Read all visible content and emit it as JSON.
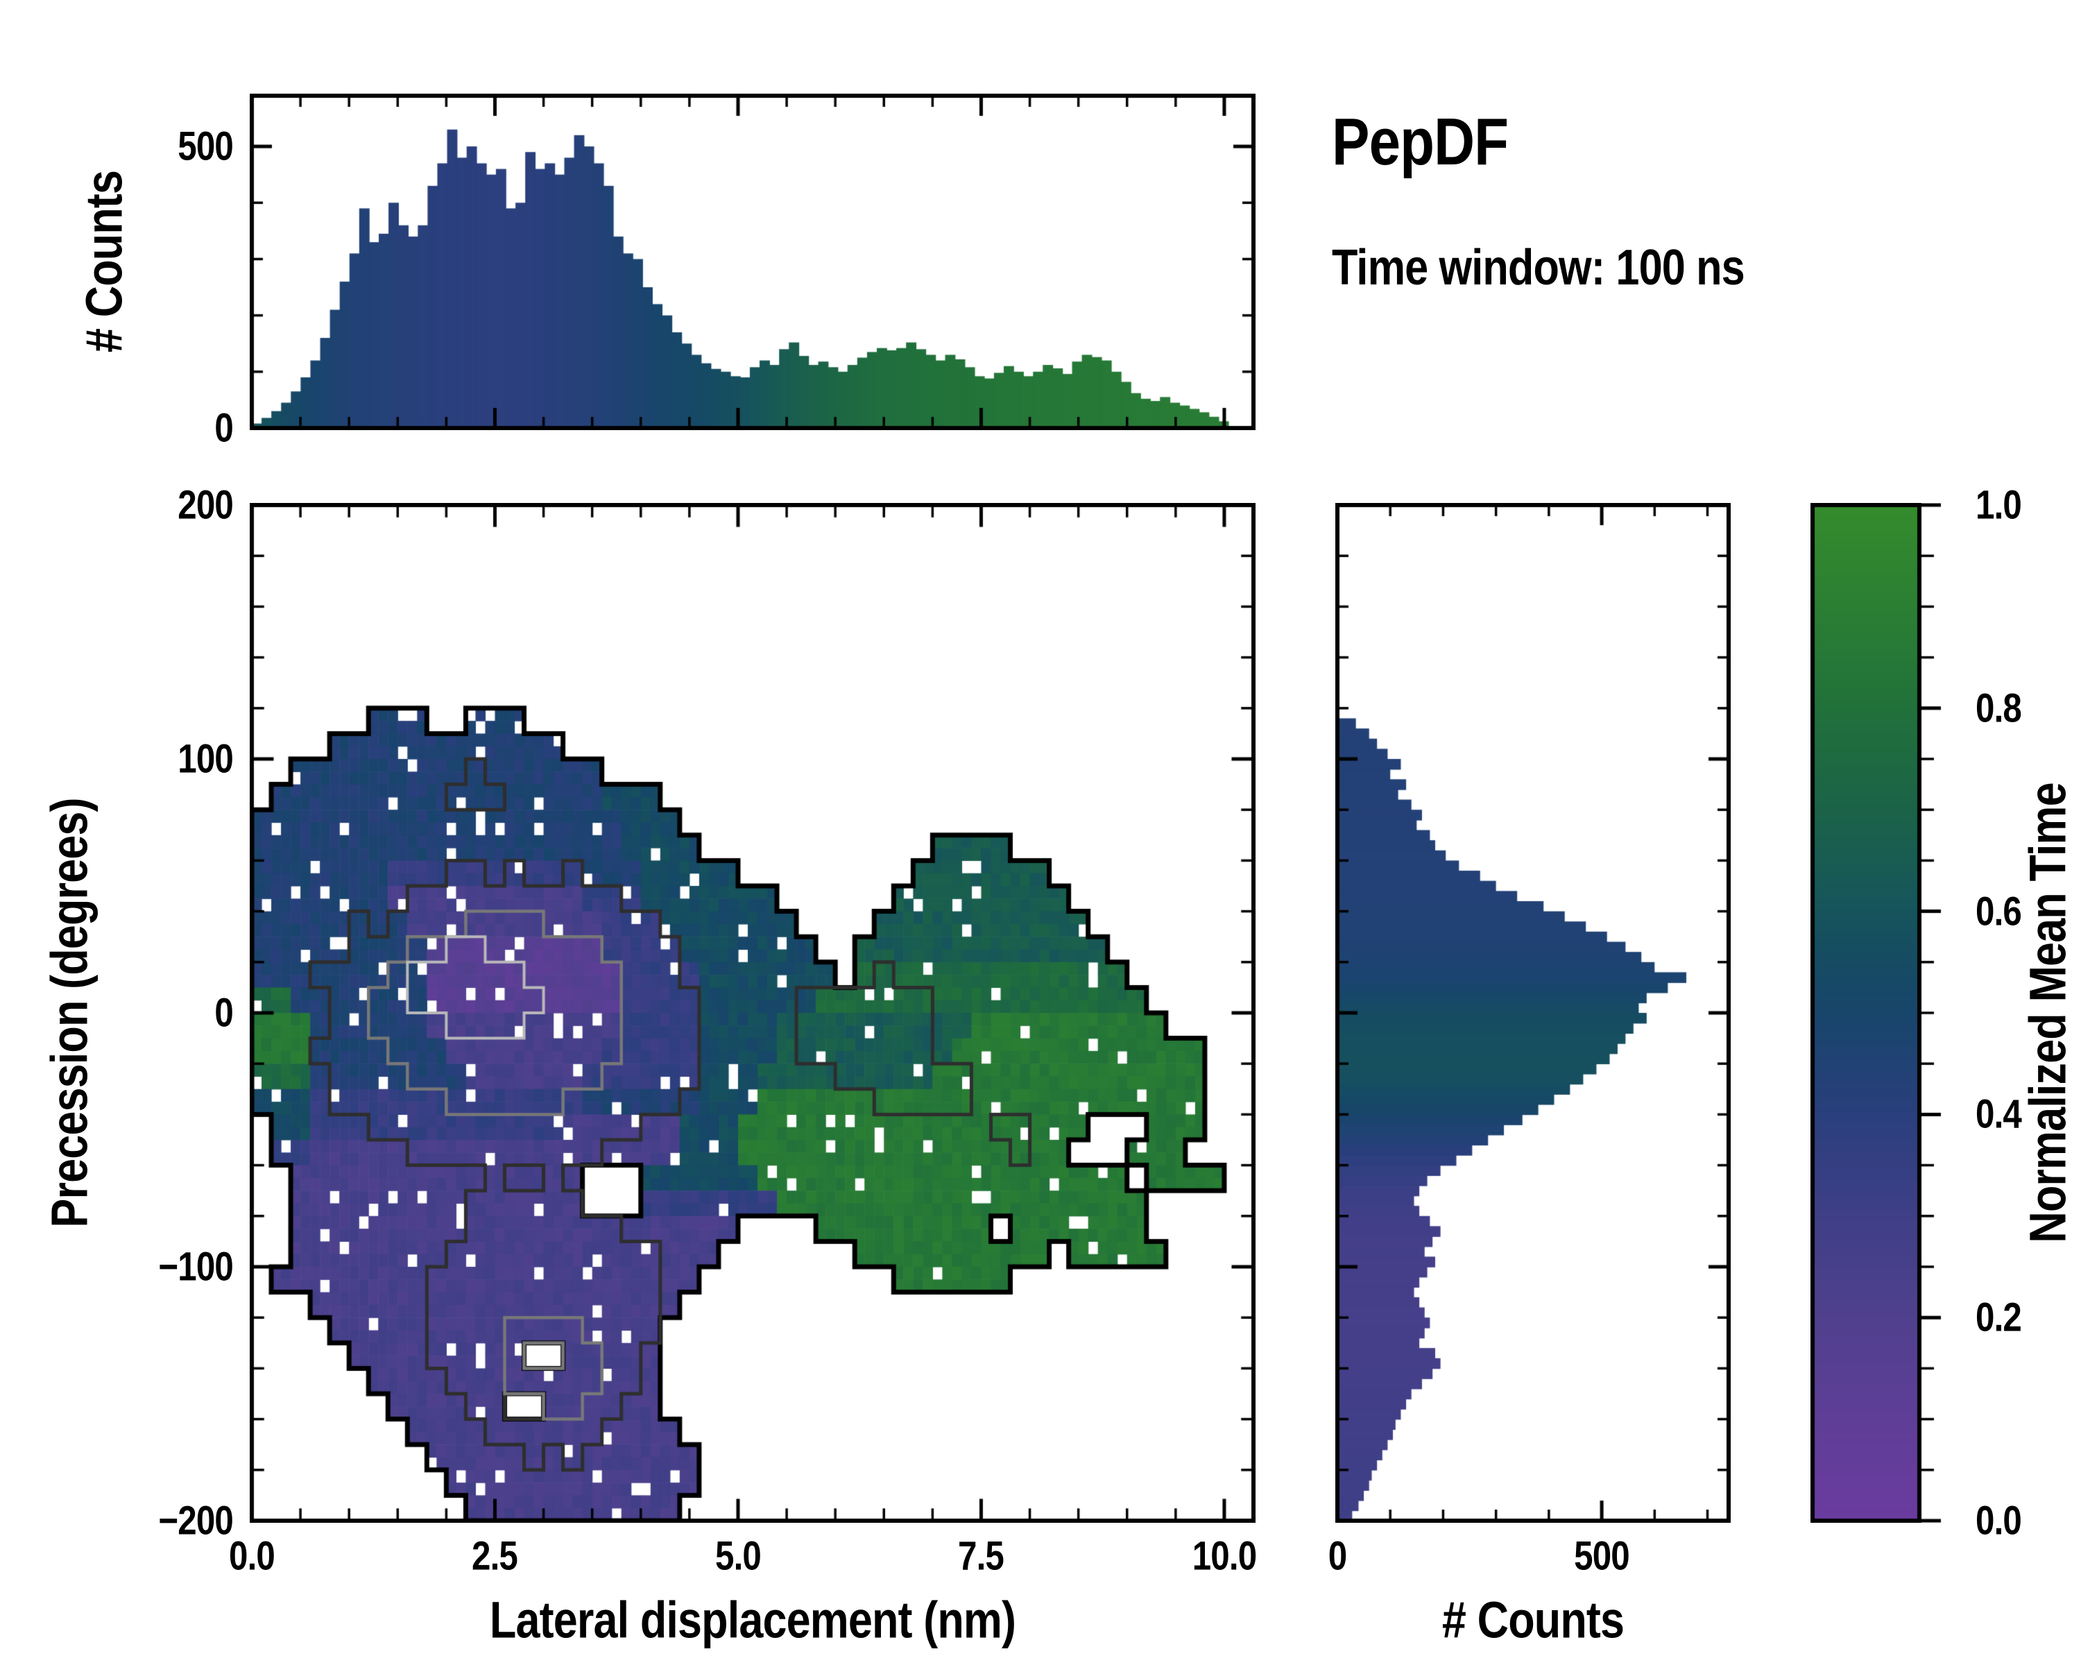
{
  "header": {
    "title": "PepDF",
    "subtitle": "Time window: 100 ns"
  },
  "colors": {
    "background": "#ffffff",
    "axis": "#000000",
    "colormap_low": "#6B3BA0",
    "colormap_mid": "#17456B",
    "colormap_high": "#348C2C"
  },
  "colormap": {
    "stops": [
      [
        0.0,
        "#6B3BA0"
      ],
      [
        0.1,
        "#5F3E97"
      ],
      [
        0.2,
        "#50408E"
      ],
      [
        0.3,
        "#3F3F87"
      ],
      [
        0.4,
        "#2A3F7D"
      ],
      [
        0.5,
        "#17456B"
      ],
      [
        0.55,
        "#164B63"
      ],
      [
        0.6,
        "#16545C"
      ],
      [
        0.65,
        "#185C52"
      ],
      [
        0.7,
        "#1B6348"
      ],
      [
        0.8,
        "#21713A"
      ],
      [
        0.9,
        "#2B7F33"
      ],
      [
        1.0,
        "#348C2C"
      ]
    ]
  },
  "chart_data": {
    "top_histogram": {
      "type": "bar",
      "ylabel": "# Counts",
      "yticks": [
        0,
        500
      ],
      "ytick_labels": [
        "0",
        "500"
      ],
      "yminor": [
        100,
        200,
        300,
        400
      ],
      "ylim": [
        0,
        590
      ],
      "x_range": [
        0,
        10
      ],
      "bins": 100,
      "counts": [
        8,
        18,
        30,
        45,
        65,
        90,
        120,
        160,
        210,
        260,
        310,
        390,
        330,
        345,
        400,
        360,
        340,
        360,
        430,
        470,
        530,
        480,
        500,
        470,
        450,
        460,
        390,
        400,
        490,
        460,
        470,
        450,
        480,
        520,
        500,
        470,
        430,
        340,
        310,
        300,
        250,
        220,
        200,
        170,
        150,
        130,
        115,
        105,
        100,
        92,
        90,
        108,
        120,
        112,
        140,
        152,
        128,
        112,
        118,
        108,
        100,
        112,
        125,
        135,
        142,
        138,
        142,
        152,
        140,
        130,
        120,
        130,
        122,
        108,
        92,
        88,
        98,
        110,
        100,
        92,
        100,
        112,
        106,
        96,
        118,
        130,
        126,
        120,
        100,
        82,
        62,
        52,
        48,
        55,
        45,
        40,
        34,
        28,
        20,
        12
      ],
      "color_profile": [
        [
          0,
          0.62
        ],
        [
          0.3,
          0.55
        ],
        [
          0.7,
          0.48
        ],
        [
          1,
          0.45
        ],
        [
          1.5,
          0.42
        ],
        [
          2,
          0.4
        ],
        [
          2.5,
          0.39
        ],
        [
          3,
          0.4
        ],
        [
          3.5,
          0.43
        ],
        [
          4,
          0.48
        ],
        [
          4.5,
          0.53
        ],
        [
          5,
          0.58
        ],
        [
          5.5,
          0.66
        ],
        [
          6,
          0.73
        ],
        [
          6.5,
          0.78
        ],
        [
          7,
          0.8
        ],
        [
          7.5,
          0.82
        ],
        [
          8,
          0.84
        ],
        [
          8.5,
          0.85
        ],
        [
          9,
          0.86
        ],
        [
          9.5,
          0.87
        ],
        [
          10,
          0.88
        ]
      ]
    },
    "heatmap": {
      "type": "heatmap",
      "xlabel": "Lateral displacement (nm)",
      "ylabel": "Precession (degrees)",
      "xlim": [
        0,
        10.3
      ],
      "ylim": [
        -200,
        200
      ],
      "xticks": [
        0,
        2.5,
        5,
        7.5,
        10
      ],
      "xtick_labels": [
        "0.0",
        "2.5",
        "5.0",
        "7.5",
        "10.0"
      ],
      "xminor_step": 0.5,
      "yticks": [
        200,
        100,
        0,
        -100,
        -200
      ],
      "ytick_labels": [
        "200",
        "100",
        "0",
        "−100",
        "−200"
      ],
      "yminor_step": 20,
      "value_meaning": "Normalized Mean Time",
      "grid": {
        "cols": 50,
        "rows": 40,
        "x_cell": 0.2,
        "y_cell": 10,
        "encoding": "char digit d means value 0.05+0.1*d, '.' means empty",
        "rows_data": [
          "..................................................",
          "..................................................",
          "..................................................",
          "..................................................",
          "..................................................",
          "..................................................",
          "..................................................",
          "..................................................",
          "......444..444....................................",
          "....444444444444..................................",
          "..4444444444444444................................",
          ".44444444444444444555.............................",
          "4444444444444444444555............................",
          "44444444444444444445555............6666...........",
          "4444444333333333344455555.........6666666.........",
          "444444422222222223335555555......666666666........",
          "4444444422222222223335555555....66666666666.......",
          "44444444411111111133335555555..6666666666666......",
          "444444444111111111133335555555.77777777777777.....",
          "7744444441111111111333355555577777777777777777....",
          "88844444422222222223333555566666666668888888888...",
          "8884444444222222223333355556666666668888888888888..",
          "7774444444422222233333355566666666688888888888888.",
          "5553333333333333344444455588888888888888888888888.",
          ".553333333333333222222555888888888888888888...888",
          ".33222222222222222222255588888888888888888...888",
          "..222222222222222...5555558888888888888888888.8888",
          "..222222222222222...33333338888888888888888888....",
          "..22222222222222222222222....888888888.8888888....",
          "..2222222222222222222222.......8888888888.88888...",
          ".2222222222222222222222..........888888...........",
          "...2222222222222222222............................",
          "....22222222222222222.............................",
          ".....222222222..22222.............................",
          "......222222222222222.............................",
          ".......222222..222222.............................",
          "........22222222222222............................",
          ".........22222222222222...........................",
          "..........2222222222222...........................",
          "...........22222222222............................"
        ]
      },
      "contours": {
        "styles": [
          {
            "level": 1,
            "color": "#000000",
            "line_width": 7
          },
          {
            "level": 2,
            "color": "#2e2e2e",
            "line_width": 5
          },
          {
            "level": 3,
            "color": "#787878",
            "line_width": 4.5
          },
          {
            "level": 4,
            "color": "#b9b9b9",
            "line_width": 4
          }
        ],
        "levels": [
          {
            "level": 2,
            "ellipses": [
              {
                "cx": 2.6,
                "cy": -5,
                "rx": 1.9,
                "ry": 62
              },
              {
                "cx": 3.0,
                "cy": -120,
                "rx": 1.2,
                "ry": 55
              },
              {
                "cx": 6.3,
                "cy": -5,
                "rx": 0.8,
                "ry": 20
              },
              {
                "cx": 6.9,
                "cy": -30,
                "rx": 0.5,
                "ry": 12
              },
              {
                "cx": 2.3,
                "cy": 88,
                "rx": 0.25,
                "ry": 8
              },
              {
                "cx": 7.8,
                "cy": -48,
                "rx": 0.3,
                "ry": 8
              }
            ]
          },
          {
            "level": 3,
            "ellipses": [
              {
                "cx": 2.5,
                "cy": 0,
                "rx": 1.3,
                "ry": 38
              },
              {
                "cx": 3.0,
                "cy": -140,
                "rx": 0.55,
                "ry": 22
              }
            ]
          },
          {
            "level": 4,
            "ellipses": [
              {
                "cx": 2.3,
                "cy": 8,
                "rx": 0.65,
                "ry": 18
              }
            ]
          }
        ]
      }
    },
    "right_histogram": {
      "type": "bar-horizontal",
      "xlabel": "# Counts",
      "xticks": [
        0,
        500
      ],
      "xtick_labels": [
        "0",
        "500"
      ],
      "xminor": [
        100,
        200,
        300,
        400,
        600,
        700
      ],
      "xlim": [
        0,
        740
      ],
      "y_range_top_to_bottom": [
        200,
        -200
      ],
      "bins": 100,
      "counts": [
        0,
        0,
        0,
        0,
        0,
        0,
        0,
        0,
        0,
        0,
        0,
        0,
        0,
        0,
        0,
        0,
        0,
        0,
        0,
        0,
        0,
        35,
        60,
        75,
        95,
        120,
        100,
        130,
        115,
        140,
        160,
        150,
        175,
        185,
        205,
        230,
        270,
        300,
        340,
        390,
        430,
        470,
        510,
        545,
        575,
        600,
        660,
        625,
        585,
        570,
        585,
        560,
        545,
        530,
        515,
        490,
        465,
        440,
        410,
        380,
        350,
        315,
        285,
        255,
        225,
        195,
        170,
        155,
        145,
        155,
        175,
        195,
        180,
        165,
        185,
        170,
        155,
        145,
        155,
        165,
        175,
        165,
        155,
        185,
        195,
        180,
        160,
        140,
        130,
        120,
        110,
        105,
        95,
        85,
        75,
        65,
        60,
        50,
        40,
        28
      ],
      "color_profile": [
        [
          120,
          0.44
        ],
        [
          60,
          0.43
        ],
        [
          30,
          0.45
        ],
        [
          15,
          0.47
        ],
        [
          5,
          0.52
        ],
        [
          0,
          0.55
        ],
        [
          -10,
          0.57
        ],
        [
          -25,
          0.58
        ],
        [
          -40,
          0.5
        ],
        [
          -55,
          0.4
        ],
        [
          -70,
          0.32
        ],
        [
          -90,
          0.27
        ],
        [
          -120,
          0.26
        ],
        [
          -150,
          0.28
        ],
        [
          -175,
          0.3
        ],
        [
          -200,
          0.3
        ]
      ]
    },
    "colorbar": {
      "label": "Normalized Mean Time",
      "range": [
        0,
        1
      ],
      "ticks": [
        0.0,
        0.2,
        0.4,
        0.6,
        0.8,
        1.0
      ],
      "tick_labels": [
        "0.0",
        "0.2",
        "0.4",
        "0.6",
        "0.8",
        "1.0"
      ],
      "minor_step": 0.05
    }
  }
}
